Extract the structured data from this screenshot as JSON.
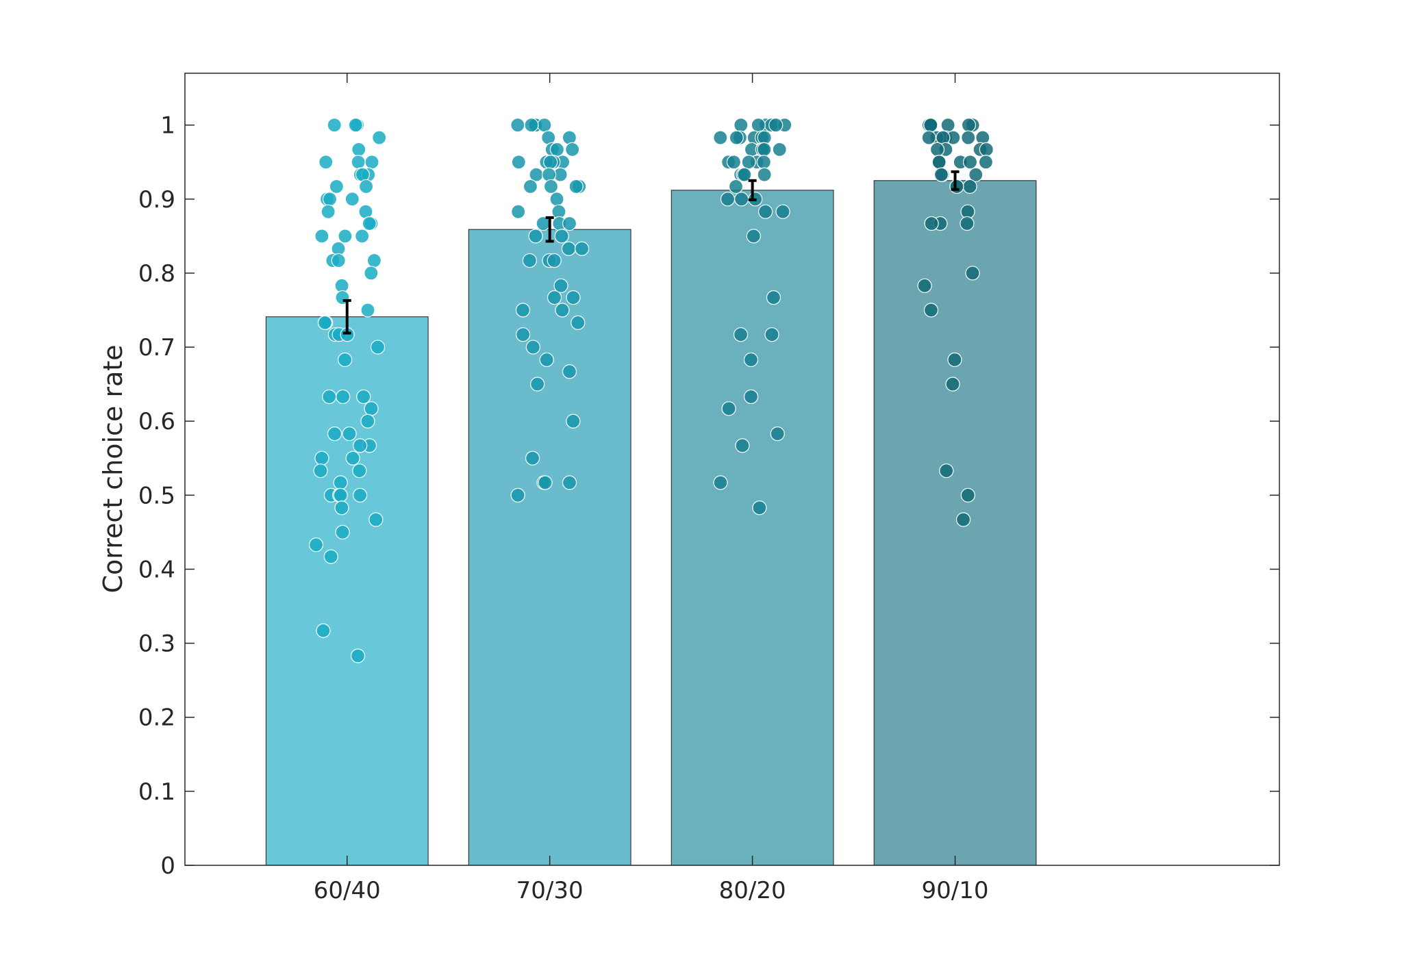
{
  "chart_data": {
    "type": "bar",
    "categories": [
      "60/40",
      "70/30",
      "80/20",
      "90/10"
    ],
    "values": [
      0.741,
      0.859,
      0.912,
      0.925
    ],
    "error": [
      0.022,
      0.016,
      0.013,
      0.012
    ],
    "bar_colors": [
      "#69c7da",
      "#6abccc",
      "#6bb1bd",
      "#6ba6b0"
    ],
    "point_colors": [
      "#1aabc4",
      "#1896ab",
      "#168091",
      "#136b78"
    ],
    "xlabel": "",
    "ylabel": "Correct choice rate",
    "ylim": [
      0,
      1.07
    ],
    "yticks": [
      "0",
      "0.1",
      "0.2",
      "0.3",
      "0.4",
      "0.5",
      "0.6",
      "0.7",
      "0.8",
      "0.9",
      "1"
    ],
    "grid": false,
    "points": [
      [
        1.0,
        1.0,
        1.0,
        0.983,
        0.967,
        0.95,
        0.95,
        0.95,
        0.933,
        0.933,
        0.933,
        0.917,
        0.917,
        0.9,
        0.9,
        0.9,
        0.883,
        0.883,
        0.867,
        0.867,
        0.85,
        0.85,
        0.85,
        0.833,
        0.817,
        0.817,
        0.817,
        0.8,
        0.783,
        0.767,
        0.75,
        0.733,
        0.733,
        0.717,
        0.717,
        0.717,
        0.7,
        0.683,
        0.633,
        0.633,
        0.633,
        0.617,
        0.6,
        0.583,
        0.583,
        0.567,
        0.567,
        0.55,
        0.55,
        0.533,
        0.533,
        0.517,
        0.5,
        0.5,
        0.5,
        0.5,
        0.483,
        0.467,
        0.45,
        0.433,
        0.417,
        0.317,
        0.283
      ],
      [
        1.0,
        1.0,
        1.0,
        1.0,
        1.0,
        0.983,
        0.983,
        0.967,
        0.967,
        0.967,
        0.95,
        0.95,
        0.95,
        0.95,
        0.95,
        0.933,
        0.933,
        0.933,
        0.917,
        0.917,
        0.917,
        0.917,
        0.9,
        0.883,
        0.883,
        0.867,
        0.867,
        0.867,
        0.85,
        0.85,
        0.833,
        0.833,
        0.817,
        0.817,
        0.817,
        0.783,
        0.767,
        0.767,
        0.75,
        0.75,
        0.733,
        0.717,
        0.7,
        0.683,
        0.667,
        0.65,
        0.6,
        0.55,
        0.517,
        0.517,
        0.517,
        0.5
      ],
      [
        1.0,
        1.0,
        1.0,
        1.0,
        1.0,
        1.0,
        1.0,
        0.983,
        0.983,
        0.983,
        0.983,
        0.983,
        0.983,
        0.967,
        0.967,
        0.967,
        0.967,
        0.967,
        0.95,
        0.95,
        0.95,
        0.95,
        0.95,
        0.933,
        0.933,
        0.933,
        0.933,
        0.917,
        0.9,
        0.9,
        0.9,
        0.883,
        0.883,
        0.85,
        0.767,
        0.717,
        0.717,
        0.683,
        0.633,
        0.617,
        0.583,
        0.567,
        0.517,
        0.483
      ],
      [
        1.0,
        1.0,
        1.0,
        1.0,
        1.0,
        1.0,
        1.0,
        0.983,
        0.983,
        0.983,
        0.983,
        0.983,
        0.983,
        0.983,
        0.967,
        0.967,
        0.967,
        0.967,
        0.95,
        0.95,
        0.95,
        0.95,
        0.95,
        0.933,
        0.933,
        0.933,
        0.917,
        0.917,
        0.917,
        0.883,
        0.867,
        0.867,
        0.867,
        0.8,
        0.783,
        0.75,
        0.683,
        0.65,
        0.533,
        0.5,
        0.467
      ]
    ]
  }
}
